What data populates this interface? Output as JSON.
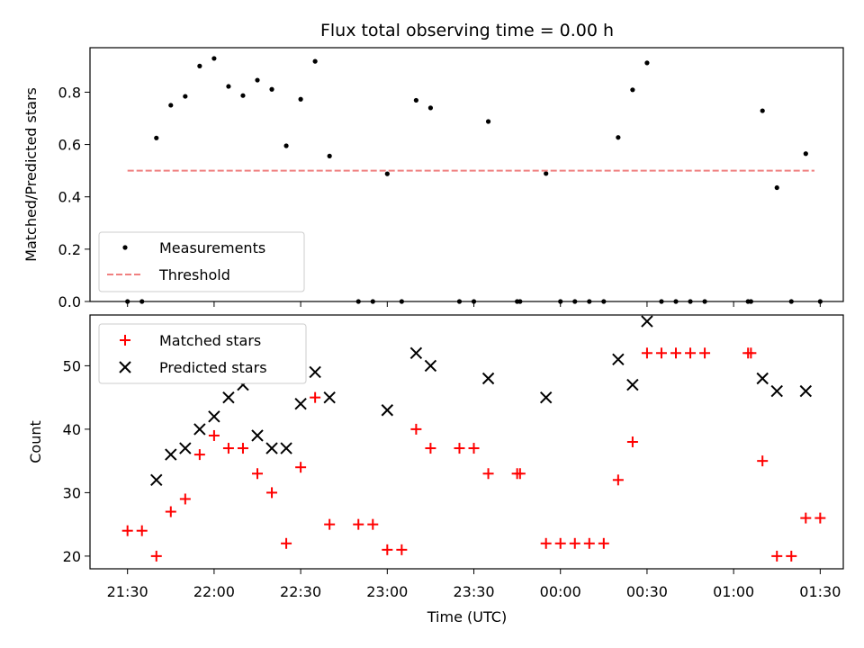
{
  "chart_data": {
    "title": "Flux total observing time = 0.00 h",
    "top": {
      "type": "scatter",
      "ylabel": "Matched/Predicted stars",
      "ylim": [
        0,
        0.97
      ],
      "yticks": [
        0.0,
        0.2,
        0.4,
        0.6,
        0.8
      ],
      "ytick_labels": [
        "0.0",
        "0.2",
        "0.4",
        "0.6",
        "0.8"
      ],
      "legend_placement": "lower-left",
      "series": [
        {
          "name": "Measurements",
          "kind": "dots",
          "color": "#000000",
          "points": [
            [
              "21:30",
              0.0
            ],
            [
              "21:35",
              0.0
            ],
            [
              "21:40",
              0.625
            ],
            [
              "21:45",
              0.75
            ],
            [
              "21:50",
              0.784
            ],
            [
              "21:55",
              0.9
            ],
            [
              "22:00",
              0.929
            ],
            [
              "22:05",
              0.822
            ],
            [
              "22:10",
              0.787
            ],
            [
              "22:15",
              0.846
            ],
            [
              "22:20",
              0.811
            ],
            [
              "22:25",
              0.595
            ],
            [
              "22:30",
              0.773
            ],
            [
              "22:35",
              0.918
            ],
            [
              "22:40",
              0.556
            ],
            [
              "22:50",
              0.0
            ],
            [
              "22:55",
              0.0
            ],
            [
              "23:00",
              0.488
            ],
            [
              "23:05",
              0.0
            ],
            [
              "23:10",
              0.769
            ],
            [
              "23:15",
              0.74
            ],
            [
              "23:25",
              0.0
            ],
            [
              "23:30",
              0.0
            ],
            [
              "23:35",
              0.688
            ],
            [
              "23:45",
              0.0
            ],
            [
              "23:46",
              0.0
            ],
            [
              "23:55",
              0.489
            ],
            [
              "00:00",
              0.0
            ],
            [
              "00:05",
              0.0
            ],
            [
              "00:10",
              0.0
            ],
            [
              "00:15",
              0.0
            ],
            [
              "00:20",
              0.627
            ],
            [
              "00:25",
              0.809
            ],
            [
              "00:30",
              0.912
            ],
            [
              "00:35",
              0.0
            ],
            [
              "00:40",
              0.0
            ],
            [
              "00:45",
              0.0
            ],
            [
              "00:50",
              0.0
            ],
            [
              "01:05",
              0.0
            ],
            [
              "01:06",
              0.0
            ],
            [
              "01:10",
              0.729
            ],
            [
              "01:15",
              0.435
            ],
            [
              "01:20",
              0.0
            ],
            [
              "01:25",
              0.565
            ],
            [
              "01:30",
              0.0
            ]
          ]
        },
        {
          "name": "Threshold",
          "kind": "dashed-line",
          "color": "#f08080",
          "points": [
            [
              "21:30",
              0.5
            ],
            [
              "01:28",
              0.5
            ]
          ]
        }
      ]
    },
    "bottom": {
      "type": "scatter",
      "ylabel": "Count",
      "xlabel": "Time (UTC)",
      "ylim": [
        18,
        58
      ],
      "yticks": [
        20,
        30,
        40,
        50
      ],
      "ytick_labels": [
        "20",
        "30",
        "40",
        "50"
      ],
      "legend_placement": "upper-left",
      "series": [
        {
          "name": "Matched stars",
          "kind": "plus",
          "color": "#ff0000",
          "points": [
            [
              "21:30",
              24
            ],
            [
              "21:35",
              24
            ],
            [
              "21:40",
              20
            ],
            [
              "21:45",
              27
            ],
            [
              "21:50",
              29
            ],
            [
              "21:55",
              36
            ],
            [
              "22:00",
              39
            ],
            [
              "22:05",
              37
            ],
            [
              "22:10",
              37
            ],
            [
              "22:15",
              33
            ],
            [
              "22:20",
              30
            ],
            [
              "22:25",
              22
            ],
            [
              "22:30",
              34
            ],
            [
              "22:35",
              45
            ],
            [
              "22:40",
              25
            ],
            [
              "22:50",
              25
            ],
            [
              "22:55",
              25
            ],
            [
              "23:00",
              21
            ],
            [
              "23:05",
              21
            ],
            [
              "23:10",
              40
            ],
            [
              "23:15",
              37
            ],
            [
              "23:25",
              37
            ],
            [
              "23:30",
              37
            ],
            [
              "23:35",
              33
            ],
            [
              "23:45",
              33
            ],
            [
              "23:46",
              33
            ],
            [
              "23:55",
              22
            ],
            [
              "00:00",
              22
            ],
            [
              "00:05",
              22
            ],
            [
              "00:10",
              22
            ],
            [
              "00:15",
              22
            ],
            [
              "00:20",
              32
            ],
            [
              "00:25",
              38
            ],
            [
              "00:30",
              52
            ],
            [
              "00:35",
              52
            ],
            [
              "00:40",
              52
            ],
            [
              "00:45",
              52
            ],
            [
              "00:50",
              52
            ],
            [
              "01:05",
              52
            ],
            [
              "01:06",
              52
            ],
            [
              "01:10",
              35
            ],
            [
              "01:15",
              20
            ],
            [
              "01:20",
              20
            ],
            [
              "01:25",
              26
            ],
            [
              "01:30",
              26
            ]
          ]
        },
        {
          "name": "Predicted stars",
          "kind": "x",
          "color": "#000000",
          "points": [
            [
              "21:40",
              32
            ],
            [
              "21:45",
              36
            ],
            [
              "21:50",
              37
            ],
            [
              "21:55",
              40
            ],
            [
              "22:00",
              42
            ],
            [
              "22:05",
              45
            ],
            [
              "22:10",
              47
            ],
            [
              "22:15",
              39
            ],
            [
              "22:20",
              37
            ],
            [
              "22:25",
              37
            ],
            [
              "22:30",
              44
            ],
            [
              "22:35",
              49
            ],
            [
              "22:40",
              45
            ],
            [
              "23:00",
              43
            ],
            [
              "23:10",
              52
            ],
            [
              "23:15",
              50
            ],
            [
              "23:35",
              48
            ],
            [
              "23:55",
              45
            ],
            [
              "00:20",
              51
            ],
            [
              "00:25",
              47
            ],
            [
              "00:30",
              57
            ],
            [
              "01:10",
              48
            ],
            [
              "01:15",
              46
            ],
            [
              "01:25",
              46
            ]
          ]
        }
      ]
    },
    "x": {
      "range": [
        "21:17",
        "01:38"
      ],
      "ticks": [
        "21:30",
        "22:00",
        "22:30",
        "23:00",
        "23:30",
        "00:00",
        "00:30",
        "01:00",
        "01:30"
      ],
      "tick_labels": [
        "21:30",
        "22:00",
        "22:30",
        "23:00",
        "23:30",
        "00:00",
        "00:30",
        "01:00",
        "01:30"
      ]
    }
  }
}
